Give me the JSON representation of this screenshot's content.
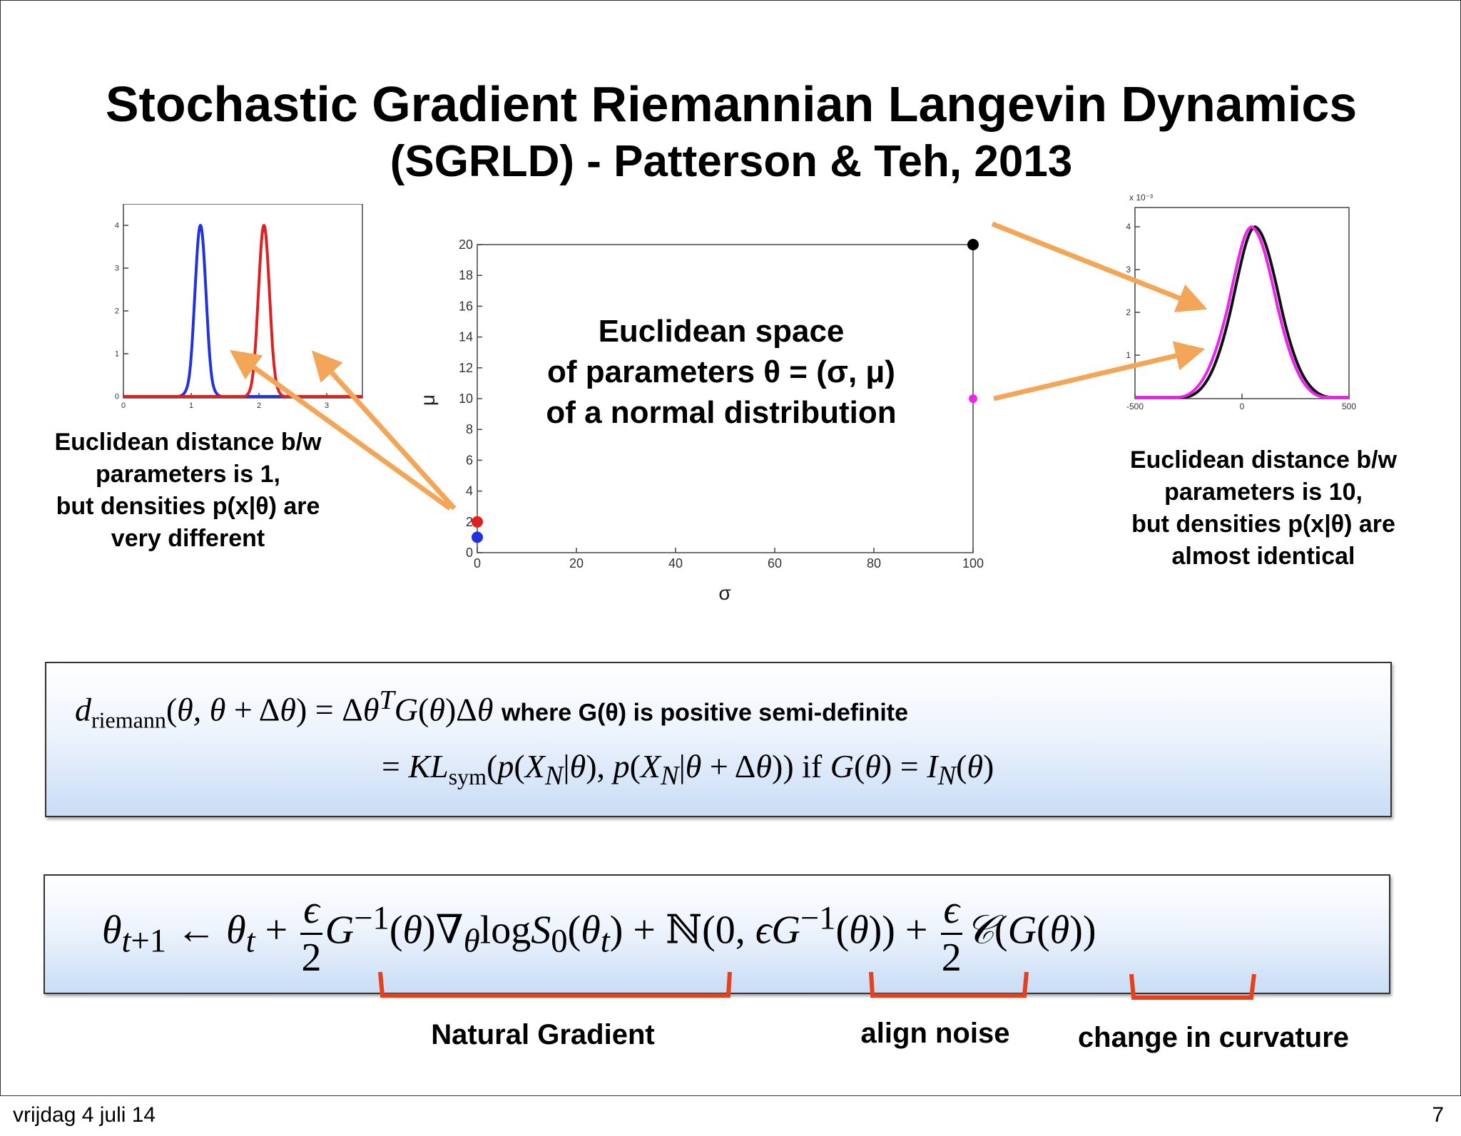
{
  "slide": {
    "title": "Stochastic Gradient Riemannian Langevin Dynamics",
    "subtitle": "(SGRLD) - Patterson & Teh, 2013"
  },
  "left_plot": {
    "xticks": [
      "0",
      "1",
      "2",
      "3"
    ],
    "yticks": [
      "0",
      "1",
      "2",
      "3",
      "4"
    ],
    "colors": {
      "blue": "#2233dd",
      "red": "#e02020"
    }
  },
  "center_plot": {
    "xticks": [
      "0",
      "20",
      "40",
      "60",
      "80",
      "100"
    ],
    "yticks": [
      "0",
      "2",
      "4",
      "6",
      "8",
      "10",
      "12",
      "14",
      "16",
      "18",
      "20"
    ],
    "xlabel": "σ",
    "ylabel": "μ",
    "caption": [
      "Euclidean space",
      "of parameters θ = (σ, μ)",
      "of a normal distribution"
    ],
    "points": [
      {
        "sigma": 0,
        "mu": 1,
        "color": "#2233dd"
      },
      {
        "sigma": 0,
        "mu": 2,
        "color": "#e02020"
      },
      {
        "sigma": 100,
        "mu": 20,
        "color": "#000000"
      },
      {
        "sigma": 100,
        "mu": 10,
        "color": "#ee22ee"
      }
    ]
  },
  "right_plot": {
    "exponent": "x 10⁻³",
    "xticks": [
      "-500",
      "0",
      "500"
    ],
    "yticks": [
      "1",
      "2",
      "3",
      "4"
    ],
    "colors": {
      "black": "#111111",
      "magenta": "#ee22ee"
    }
  },
  "left_caption": [
    "Euclidean distance b/w",
    "parameters is 1,",
    "but densities p(x|θ) are",
    "very different"
  ],
  "right_caption": [
    "Euclidean distance b/w",
    "parameters is 10,",
    "but densities p(x|θ) are",
    "almost identical"
  ],
  "eq1": {
    "note": "where G(θ) is positive semi-definite",
    "if_text": "if"
  },
  "labels": {
    "natural_gradient": "Natural Gradient",
    "align_noise": "align noise",
    "change_curvature": "change in curvature"
  },
  "footer": {
    "date": "vrijdag 4 juli 14",
    "page": "7"
  },
  "accent_colors": {
    "arrow": "#f3a657",
    "brace": "#e8401c"
  }
}
